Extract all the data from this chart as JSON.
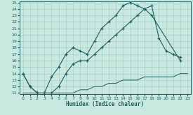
{
  "xlabel": "Humidex (Indice chaleur)",
  "xlim": [
    -0.5,
    23.5
  ],
  "ylim": [
    11,
    25
  ],
  "yticks": [
    11,
    12,
    13,
    14,
    15,
    16,
    17,
    18,
    19,
    20,
    21,
    22,
    23,
    24,
    25
  ],
  "xticks": [
    0,
    1,
    2,
    3,
    4,
    5,
    6,
    7,
    8,
    9,
    10,
    11,
    12,
    13,
    14,
    15,
    16,
    17,
    18,
    19,
    20,
    21,
    22,
    23
  ],
  "bg_color": "#c8e8e0",
  "line_color": "#1a6060",
  "line1_x": [
    0,
    1,
    2,
    3,
    4,
    5,
    6,
    7,
    8,
    9,
    10,
    11,
    12,
    13,
    14,
    15,
    16,
    17,
    18,
    22
  ],
  "line1_y": [
    14,
    12,
    11,
    11,
    13.5,
    15,
    17,
    18,
    17.5,
    17,
    19,
    21,
    22,
    23,
    24.5,
    25,
    24.5,
    24,
    23,
    16
  ],
  "line2_x": [
    0,
    1,
    2,
    3,
    4,
    5,
    6,
    7,
    8,
    9,
    10,
    11,
    12,
    13,
    14,
    15,
    16,
    17,
    18,
    19,
    20,
    21,
    22
  ],
  "line2_y": [
    14,
    12,
    11,
    11,
    11,
    12,
    14,
    15.5,
    16,
    16,
    17,
    18,
    19,
    20,
    21,
    22,
    23,
    24,
    24.5,
    19.5,
    17.5,
    17,
    16.5
  ],
  "line3_x": [
    0,
    1,
    2,
    3,
    4,
    5,
    6,
    7,
    8,
    9,
    10,
    11,
    12,
    13,
    14,
    15,
    16,
    17,
    18,
    19,
    20,
    21,
    22,
    23
  ],
  "line3_y": [
    11,
    11,
    11,
    11,
    11,
    11,
    11,
    11,
    11.5,
    11.5,
    12,
    12,
    12.5,
    12.5,
    13,
    13,
    13,
    13.5,
    13.5,
    13.5,
    13.5,
    13.5,
    14,
    14
  ]
}
